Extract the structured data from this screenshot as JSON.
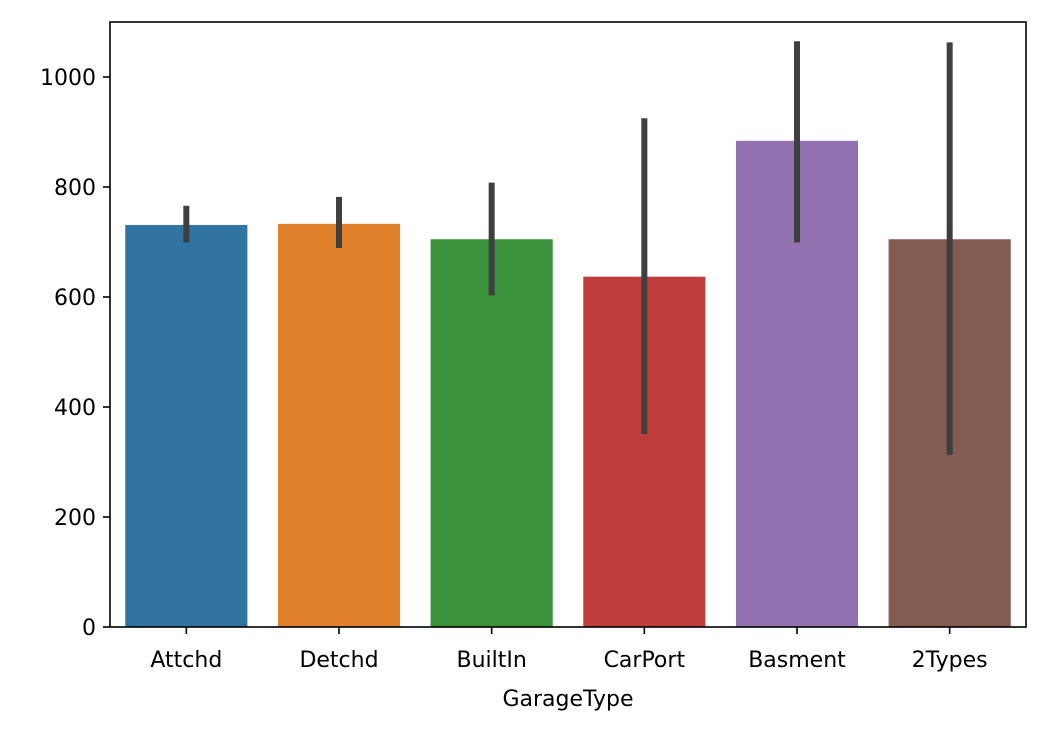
{
  "chart_data": {
    "type": "bar",
    "title": "",
    "xlabel": "GarageType",
    "ylabel": "",
    "categories": [
      "Attchd",
      "Detchd",
      "BuiltIn",
      "CarPort",
      "Basment",
      "2Types"
    ],
    "values": [
      731,
      733,
      705,
      637,
      884,
      705
    ],
    "error_bars": [
      {
        "low": 699,
        "high": 766
      },
      {
        "low": 689,
        "high": 782
      },
      {
        "low": 603,
        "high": 808
      },
      {
        "low": 351,
        "high": 925
      },
      {
        "low": 699,
        "high": 1065
      },
      {
        "low": 313,
        "high": 1063
      }
    ],
    "colors": [
      "#3274a1",
      "#e1812c",
      "#3a923a",
      "#c03d3e",
      "#9372b2",
      "#845b53"
    ],
    "error_bar_color": "#3f3f3f",
    "ylim": [
      0,
      1100
    ],
    "yticks": [
      0,
      200,
      400,
      600,
      800,
      1000
    ],
    "grid": false,
    "legend": "none"
  }
}
